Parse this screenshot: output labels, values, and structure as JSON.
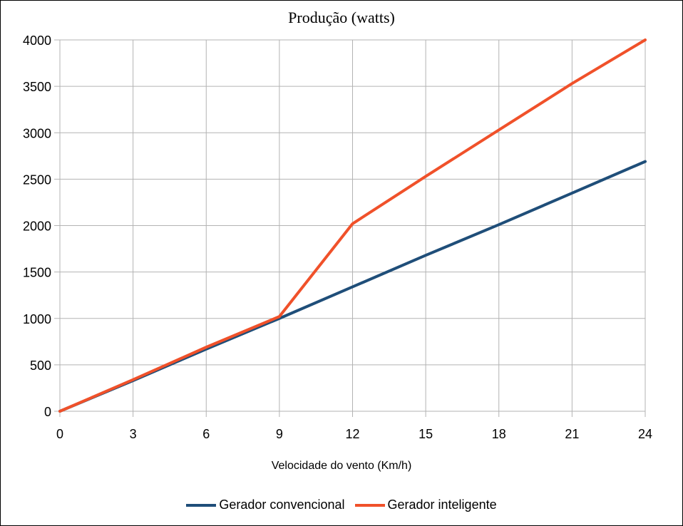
{
  "chart_data": {
    "type": "line",
    "title": "Produção (watts)",
    "xlabel": "Velocidade do vento (Km/h)",
    "ylabel": "",
    "x": [
      0,
      3,
      6,
      9,
      12,
      15,
      18,
      21,
      24
    ],
    "xlim": [
      0,
      24
    ],
    "ylim": [
      0,
      4000
    ],
    "xticks": [
      "0",
      "3",
      "6",
      "9",
      "12",
      "15",
      "18",
      "21",
      "24"
    ],
    "yticks": [
      "0",
      "500",
      "1000",
      "1500",
      "2000",
      "2500",
      "3000",
      "3500",
      "4000"
    ],
    "grid": true,
    "legend_position": "bottom",
    "series": [
      {
        "name": "Gerador convencional",
        "color": "#1f4e79",
        "values": [
          0,
          330,
          670,
          1000,
          1340,
          1680,
          2010,
          2350,
          2690
        ]
      },
      {
        "name": "Gerador inteligente",
        "color": "#f0512a",
        "values": [
          0,
          340,
          690,
          1020,
          2020,
          2530,
          3030,
          3530,
          4000
        ]
      }
    ]
  }
}
